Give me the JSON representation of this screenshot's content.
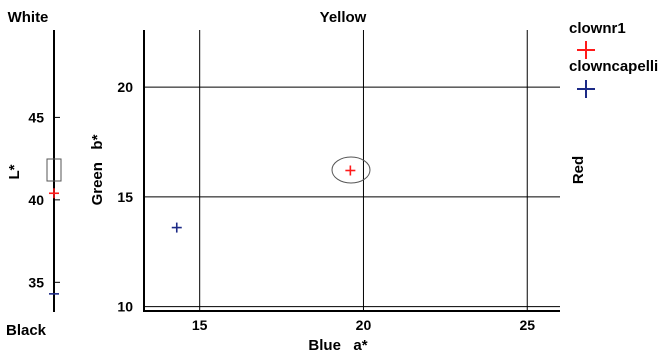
{
  "chart_data": [
    {
      "type": "scatter",
      "top_label": "White",
      "bottom_label": "Black",
      "ylabel": "L*",
      "ylim": [
        33.2,
        50.3
      ],
      "yticks": [
        35,
        40,
        45
      ],
      "grid": false,
      "series": [
        {
          "name": "clownr1",
          "values": [
            40.4
          ]
        },
        {
          "name": "clowncapelli",
          "values": [
            34.3
          ]
        }
      ]
    },
    {
      "type": "scatter",
      "title": "Yellow",
      "xlabel": "Blue   a*",
      "ylabel": "Green   b*",
      "right_label": "Red",
      "xlim": [
        13.3,
        26.0
      ],
      "ylim": [
        9.8,
        22.6
      ],
      "xticks": [
        15,
        20,
        25
      ],
      "yticks": [
        10,
        15,
        20
      ],
      "grid": true,
      "series": [
        {
          "name": "clownr1",
          "points": [
            {
              "x": 19.6,
              "y": 16.2
            }
          ]
        },
        {
          "name": "clowncapelli",
          "points": [
            {
              "x": 14.3,
              "y": 13.6
            }
          ]
        }
      ],
      "legend": {
        "placement": "right",
        "entries": [
          "clownr1",
          "clowncapelli"
        ]
      }
    }
  ],
  "colors": {
    "clownr1": "#ff1a1a",
    "clowncapelli": "#1c2a86",
    "axis": "#000000",
    "grid": "#000000"
  }
}
